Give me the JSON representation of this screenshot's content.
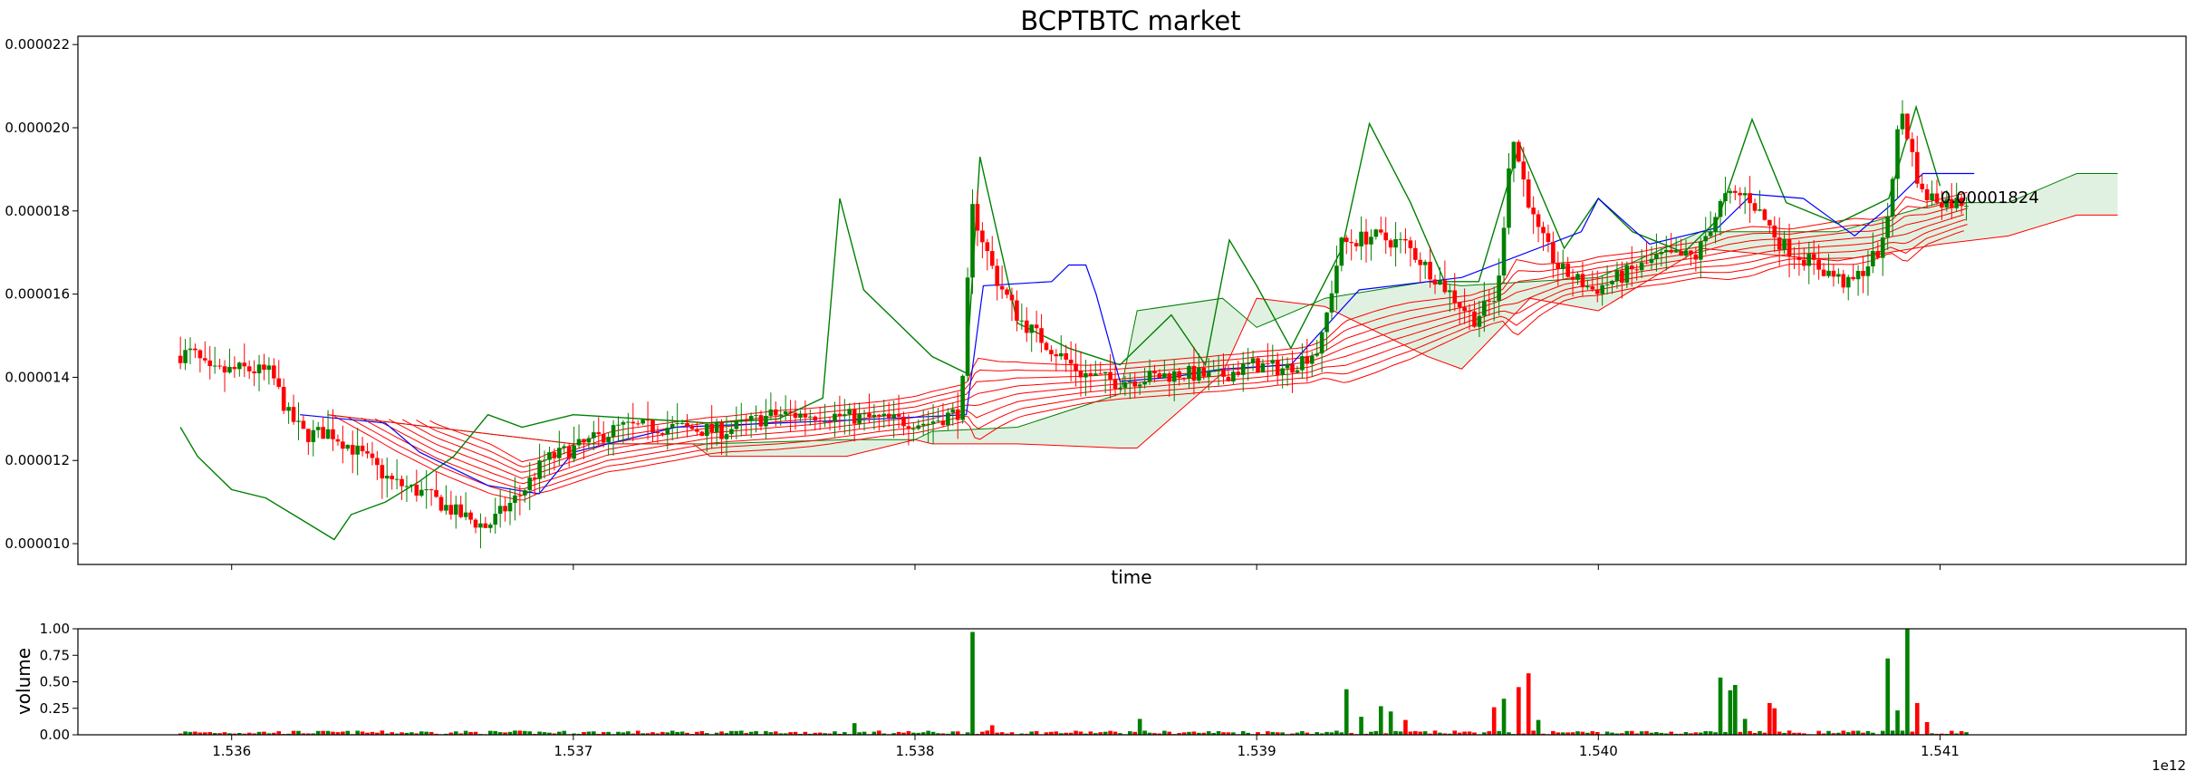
{
  "title": "BCPTBTC market",
  "chart_data": [
    {
      "type": "candlestick",
      "title": "BCPTBTC market",
      "xlabel": "time",
      "ylabel": "",
      "x_offset_label": "1e12",
      "xlim": [
        1535550000000,
        1541720000000
      ],
      "ylim": [
        9.5e-06,
        2.22e-05
      ],
      "x_ticks": [
        1536000000000,
        1537000000000,
        1538000000000,
        1539000000000,
        1540000000000,
        1541000000000
      ],
      "x_tick_labels": [
        "1.536",
        "1.537",
        "1.538",
        "1.539",
        "1.540",
        "1.541"
      ],
      "y_ticks": [
        1e-05,
        1.2e-05,
        1.4e-05,
        1.6e-05,
        1.8e-05,
        2e-05,
        2.2e-05
      ],
      "y_tick_labels": [
        "0.000010",
        "0.000012",
        "0.000014",
        "0.000016",
        "0.000018",
        "0.000020",
        "0.000022"
      ],
      "last_price_label": "0.00001824",
      "last_price": 1.824e-05,
      "colors": {
        "up": "#008000",
        "down": "#ff0000",
        "ribbon": "#ff0000",
        "ma_green": "#008000",
        "blue_line": "#0000ff",
        "cloud": "#c8e6c8",
        "cloud_red": "#f4c2c2"
      },
      "price_keypoints": [
        [
          1535840000000,
          1.45e-05
        ],
        [
          1535900000000,
          1.46e-05
        ],
        [
          1535950000000,
          1.41e-05
        ],
        [
          1536050000000,
          1.42e-05
        ],
        [
          1536130000000,
          1.41e-05
        ],
        [
          1536180000000,
          1.31e-05
        ],
        [
          1536230000000,
          1.26e-05
        ],
        [
          1536300000000,
          1.27e-05
        ],
        [
          1536400000000,
          1.21e-05
        ],
        [
          1536480000000,
          1.15e-05
        ],
        [
          1536580000000,
          1.12e-05
        ],
        [
          1536680000000,
          1.07e-05
        ],
        [
          1536760000000,
          1.04e-05
        ],
        [
          1536860000000,
          1.12e-05
        ],
        [
          1536930000000,
          1.2e-05
        ],
        [
          1537050000000,
          1.24e-05
        ],
        [
          1537150000000,
          1.28e-05
        ],
        [
          1537300000000,
          1.28e-05
        ],
        [
          1537450000000,
          1.27e-05
        ],
        [
          1537600000000,
          1.31e-05
        ],
        [
          1537750000000,
          1.31e-05
        ],
        [
          1537900000000,
          1.3e-05
        ],
        [
          1538050000000,
          1.29e-05
        ],
        [
          1538150000000,
          1.32e-05
        ],
        [
          1538180000000,
          1.81e-05
        ],
        [
          1538250000000,
          1.64e-05
        ],
        [
          1538320000000,
          1.54e-05
        ],
        [
          1538400000000,
          1.48e-05
        ],
        [
          1538500000000,
          1.41e-05
        ],
        [
          1538600000000,
          1.39e-05
        ],
        [
          1538700000000,
          1.4e-05
        ],
        [
          1538800000000,
          1.41e-05
        ],
        [
          1538900000000,
          1.4e-05
        ],
        [
          1539000000000,
          1.43e-05
        ],
        [
          1539100000000,
          1.42e-05
        ],
        [
          1539200000000,
          1.47e-05
        ],
        [
          1539260000000,
          1.72e-05
        ],
        [
          1539350000000,
          1.74e-05
        ],
        [
          1539450000000,
          1.72e-05
        ],
        [
          1539550000000,
          1.63e-05
        ],
        [
          1539650000000,
          1.54e-05
        ],
        [
          1539720000000,
          1.6e-05
        ],
        [
          1539760000000,
          1.99e-05
        ],
        [
          1539830000000,
          1.76e-05
        ],
        [
          1539900000000,
          1.66e-05
        ],
        [
          1540000000000,
          1.61e-05
        ],
        [
          1540100000000,
          1.65e-05
        ],
        [
          1540200000000,
          1.69e-05
        ],
        [
          1540300000000,
          1.69e-05
        ],
        [
          1540380000000,
          1.83e-05
        ],
        [
          1540450000000,
          1.84e-05
        ],
        [
          1540550000000,
          1.72e-05
        ],
        [
          1540650000000,
          1.67e-05
        ],
        [
          1540750000000,
          1.62e-05
        ],
        [
          1540850000000,
          1.72e-05
        ],
        [
          1540900000000,
          2.05e-05
        ],
        [
          1540960000000,
          1.84e-05
        ],
        [
          1541050000000,
          1.82e-05
        ],
        [
          1541080000000,
          1.824e-05
        ]
      ],
      "ribbon_keypoints": [
        [
          1536300000000,
          1.36e-05
        ],
        [
          1536600000000,
          1.23e-05
        ],
        [
          1536850000000,
          1.15e-05
        ],
        [
          1537100000000,
          1.22e-05
        ],
        [
          1537400000000,
          1.26e-05
        ],
        [
          1537700000000,
          1.28e-05
        ],
        [
          1538000000000,
          1.31e-05
        ],
        [
          1538300000000,
          1.37e-05
        ],
        [
          1538600000000,
          1.39e-05
        ],
        [
          1538900000000,
          1.41e-05
        ],
        [
          1539150000000,
          1.43e-05
        ],
        [
          1539400000000,
          1.5e-05
        ],
        [
          1539650000000,
          1.56e-05
        ],
        [
          1539900000000,
          1.63e-05
        ],
        [
          1540200000000,
          1.67e-05
        ],
        [
          1540500000000,
          1.71e-05
        ],
        [
          1540800000000,
          1.73e-05
        ],
        [
          1541080000000,
          1.8e-05
        ]
      ],
      "green_line_keypoints": [
        [
          1535850000000,
          1.28e-05
        ],
        [
          1535900000000,
          1.21e-05
        ],
        [
          1536000000000,
          1.13e-05
        ],
        [
          1536100000000,
          1.11e-05
        ],
        [
          1536200000000,
          1.06e-05
        ],
        [
          1536300000000,
          1.01e-05
        ],
        [
          1536350000000,
          1.07e-05
        ],
        [
          1536450000000,
          1.1e-05
        ],
        [
          1536550000000,
          1.15e-05
        ],
        [
          1536650000000,
          1.21e-05
        ],
        [
          1536750000000,
          1.31e-05
        ],
        [
          1536850000000,
          1.28e-05
        ],
        [
          1537000000000,
          1.31e-05
        ],
        [
          1537200000000,
          1.3e-05
        ],
        [
          1537400000000,
          1.29e-05
        ],
        [
          1537600000000,
          1.3e-05
        ],
        [
          1537730000000,
          1.35e-05
        ],
        [
          1537780000000,
          1.83e-05
        ],
        [
          1537850000000,
          1.61e-05
        ],
        [
          1537950000000,
          1.53e-05
        ],
        [
          1538050000000,
          1.45e-05
        ],
        [
          1538150000000,
          1.41e-05
        ],
        [
          1538190000000,
          1.93e-05
        ],
        [
          1538300000000,
          1.53e-05
        ],
        [
          1538450000000,
          1.47e-05
        ],
        [
          1538600000000,
          1.43e-05
        ],
        [
          1538750000000,
          1.55e-05
        ],
        [
          1538850000000,
          1.43e-05
        ],
        [
          1538920000000,
          1.73e-05
        ],
        [
          1539000000000,
          1.62e-05
        ],
        [
          1539100000000,
          1.47e-05
        ],
        [
          1539250000000,
          1.71e-05
        ],
        [
          1539330000000,
          2.01e-05
        ],
        [
          1539450000000,
          1.82e-05
        ],
        [
          1539550000000,
          1.63e-05
        ],
        [
          1539650000000,
          1.63e-05
        ],
        [
          1539770000000,
          1.96e-05
        ],
        [
          1539900000000,
          1.71e-05
        ],
        [
          1540000000000,
          1.83e-05
        ],
        [
          1540100000000,
          1.75e-05
        ],
        [
          1540250000000,
          1.7e-05
        ],
        [
          1540350000000,
          1.78e-05
        ],
        [
          1540450000000,
          2.02e-05
        ],
        [
          1540550000000,
          1.82e-05
        ],
        [
          1540700000000,
          1.77e-05
        ],
        [
          1540850000000,
          1.83e-05
        ],
        [
          1540930000000,
          2.05e-05
        ],
        [
          1541000000000,
          1.86e-05
        ]
      ],
      "blue_line_keypoints": [
        [
          1536200000000,
          1.31e-05
        ],
        [
          1536450000000,
          1.29e-05
        ],
        [
          1536550000000,
          1.22e-05
        ],
        [
          1536750000000,
          1.14e-05
        ],
        [
          1536900000000,
          1.12e-05
        ],
        [
          1537000000000,
          1.22e-05
        ],
        [
          1537300000000,
          1.28e-05
        ],
        [
          1537600000000,
          1.29e-05
        ],
        [
          1537900000000,
          1.3e-05
        ],
        [
          1538150000000,
          1.31e-05
        ],
        [
          1538200000000,
          1.62e-05
        ],
        [
          1538400000000,
          1.63e-05
        ],
        [
          1538450000000,
          1.67e-05
        ],
        [
          1538500000000,
          1.67e-05
        ],
        [
          1538530000000,
          1.6e-05
        ],
        [
          1538600000000,
          1.39e-05
        ],
        [
          1538750000000,
          1.4e-05
        ],
        [
          1538900000000,
          1.42e-05
        ],
        [
          1539100000000,
          1.43e-05
        ],
        [
          1539300000000,
          1.61e-05
        ],
        [
          1539600000000,
          1.64e-05
        ],
        [
          1539950000000,
          1.75e-05
        ],
        [
          1540000000000,
          1.83e-05
        ],
        [
          1540150000000,
          1.72e-05
        ],
        [
          1540350000000,
          1.76e-05
        ],
        [
          1540450000000,
          1.84e-05
        ],
        [
          1540600000000,
          1.83e-05
        ],
        [
          1540750000000,
          1.74e-05
        ],
        [
          1540850000000,
          1.81e-05
        ],
        [
          1540950000000,
          1.89e-05
        ],
        [
          1541100000000,
          1.89e-05
        ]
      ],
      "cloud_keypoints": [
        [
          1536280000000,
          1.31e-05,
          1.31e-05
        ],
        [
          1537000000000,
          1.24e-05,
          1.24e-05
        ],
        [
          1537350000000,
          1.24e-05,
          1.24e-05
        ],
        [
          1537400000000,
          1.21e-05,
          1.24e-05
        ],
        [
          1537800000000,
          1.21e-05,
          1.25e-05
        ],
        [
          1538000000000,
          1.25e-05,
          1.25e-05
        ],
        [
          1538050000000,
          1.24e-05,
          1.27e-05
        ],
        [
          1538300000000,
          1.24e-05,
          1.28e-05
        ],
        [
          1538600000000,
          1.23e-05,
          1.36e-05
        ],
        [
          1538650000000,
          1.23e-05,
          1.56e-05
        ],
        [
          1538900000000,
          1.41e-05,
          1.59e-05
        ],
        [
          1539000000000,
          1.59e-05,
          1.52e-05
        ],
        [
          1539200000000,
          1.57e-05,
          1.59e-05
        ],
        [
          1539500000000,
          1.45e-05,
          1.63e-05
        ],
        [
          1539600000000,
          1.42e-05,
          1.62e-05
        ],
        [
          1539800000000,
          1.59e-05,
          1.63e-05
        ],
        [
          1540000000000,
          1.56e-05,
          1.64e-05
        ],
        [
          1540300000000,
          1.71e-05,
          1.75e-05
        ],
        [
          1540700000000,
          1.68e-05,
          1.75e-05
        ],
        [
          1541000000000,
          1.72e-05,
          1.82e-05
        ],
        [
          1541200000000,
          1.74e-05,
          1.82e-05
        ],
        [
          1541400000000,
          1.79e-05,
          1.89e-05
        ],
        [
          1541520000000,
          1.79e-05,
          1.89e-05
        ]
      ]
    },
    {
      "type": "bar",
      "title": "",
      "xlabel": "",
      "ylabel": "volume",
      "x_offset_label": "1e12",
      "xlim": [
        1535550000000,
        1541720000000
      ],
      "ylim": [
        0,
        1.0
      ],
      "x_ticks": [
        1536000000000,
        1537000000000,
        1538000000000,
        1539000000000,
        1540000000000,
        1541000000000
      ],
      "x_tick_labels": [
        "1.536",
        "1.537",
        "1.538",
        "1.539",
        "1.540",
        "1.541"
      ],
      "y_ticks": [
        0,
        0.25,
        0.5,
        0.75,
        1.0
      ],
      "y_tick_labels": [
        "0.00",
        "0.25",
        "0.50",
        "0.75",
        "1.00"
      ],
      "volume_spikes": [
        [
          1538170000000,
          0.97,
          "up"
        ],
        [
          1538190000000,
          0.18,
          "up"
        ],
        [
          1538230000000,
          0.09,
          "down"
        ],
        [
          1537820000000,
          0.11,
          "up"
        ],
        [
          1538660000000,
          0.15,
          "up"
        ],
        [
          1539260000000,
          0.43,
          "up"
        ],
        [
          1539300000000,
          0.17,
          "up"
        ],
        [
          1539360000000,
          0.27,
          "up"
        ],
        [
          1539390000000,
          0.22,
          "up"
        ],
        [
          1539430000000,
          0.14,
          "down"
        ],
        [
          1539700000000,
          0.26,
          "down"
        ],
        [
          1539730000000,
          0.34,
          "up"
        ],
        [
          1539760000000,
          0.45,
          "down"
        ],
        [
          1539790000000,
          0.58,
          "down"
        ],
        [
          1539830000000,
          0.14,
          "up"
        ],
        [
          1540360000000,
          0.54,
          "up"
        ],
        [
          1540380000000,
          0.42,
          "up"
        ],
        [
          1540400000000,
          0.47,
          "up"
        ],
        [
          1540430000000,
          0.15,
          "up"
        ],
        [
          1540500000000,
          0.3,
          "down"
        ],
        [
          1540520000000,
          0.25,
          "down"
        ],
        [
          1540840000000,
          0.72,
          "up"
        ],
        [
          1540870000000,
          0.23,
          "up"
        ],
        [
          1540900000000,
          1.0,
          "up"
        ],
        [
          1540940000000,
          0.3,
          "down"
        ],
        [
          1540960000000,
          0.12,
          "down"
        ]
      ]
    }
  ]
}
